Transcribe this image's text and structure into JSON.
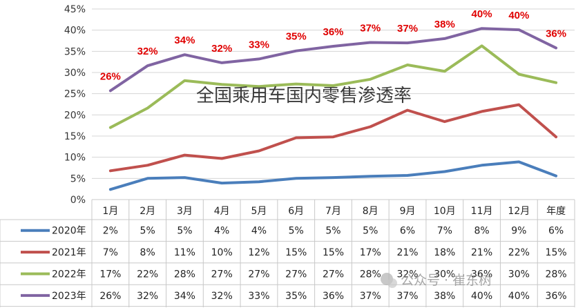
{
  "chart_data": {
    "type": "line",
    "title": "全国乘用车国内零售渗透率",
    "categories": [
      "1月",
      "2月",
      "3月",
      "4月",
      "5月",
      "6月",
      "7月",
      "8月",
      "9月",
      "10月",
      "11月",
      "12月",
      "年度"
    ],
    "y_ticks": [
      "0%",
      "5%",
      "10%",
      "15%",
      "20%",
      "25%",
      "30%",
      "35%",
      "40%",
      "45%"
    ],
    "ylim": [
      0,
      45
    ],
    "grid": true,
    "legend_placement": "data-table-left",
    "series": [
      {
        "name": "2020年",
        "color": "#4a7ebb",
        "values": [
          2.4,
          5.0,
          5.2,
          3.9,
          4.2,
          5.0,
          5.2,
          5.5,
          5.7,
          6.6,
          8.1,
          8.9,
          5.6
        ],
        "table": [
          "2%",
          "5%",
          "5%",
          "4%",
          "4%",
          "5%",
          "5%",
          "5%",
          "6%",
          "7%",
          "8%",
          "9%",
          "6%"
        ]
      },
      {
        "name": "2021年",
        "color": "#c0504d",
        "values": [
          6.8,
          8.1,
          10.5,
          9.7,
          11.5,
          14.6,
          14.8,
          17.2,
          21.1,
          18.4,
          20.8,
          22.4,
          14.8
        ],
        "table": [
          "7%",
          "8%",
          "11%",
          "10%",
          "12%",
          "15%",
          "15%",
          "17%",
          "21%",
          "18%",
          "21%",
          "22%",
          "15%"
        ]
      },
      {
        "name": "2022年",
        "color": "#9bbb59",
        "values": [
          17.0,
          21.6,
          28.1,
          27.2,
          26.7,
          27.3,
          26.9,
          28.4,
          31.8,
          30.3,
          36.3,
          29.6,
          27.6
        ],
        "table": [
          "17%",
          "22%",
          "28%",
          "27%",
          "27%",
          "27%",
          "27%",
          "28%",
          "32%",
          "30%",
          "36%",
          "30%",
          "28%"
        ]
      },
      {
        "name": "2023年",
        "color": "#8064a2",
        "values": [
          25.7,
          31.6,
          34.2,
          32.3,
          33.2,
          35.1,
          36.2,
          37.1,
          37.0,
          38.0,
          40.4,
          40.1,
          35.8
        ],
        "table": [
          "26%",
          "32%",
          "34%",
          "32%",
          "33%",
          "35%",
          "36%",
          "37%",
          "37%",
          "38%",
          "40%",
          "40%",
          "36%"
        ]
      }
    ],
    "annotations": [
      "26%",
      "32%",
      "34%",
      "32%",
      "33%",
      "35%",
      "36%",
      "37%",
      "37%",
      "38%",
      "40%",
      "40%",
      "36%"
    ]
  },
  "watermark": "公众号 · 崔东树"
}
